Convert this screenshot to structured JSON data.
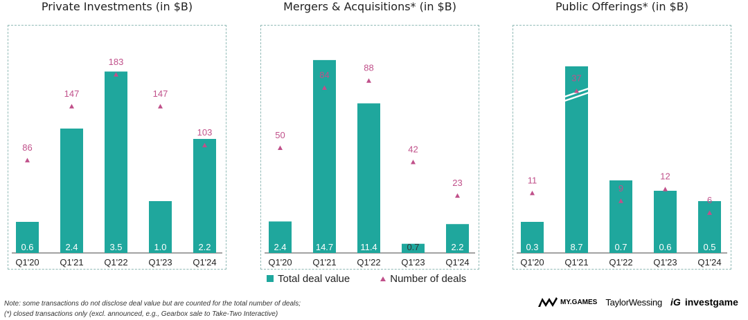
{
  "colors": {
    "bar": "#1fa79d",
    "marker": "#c0508a",
    "border": "#8fb9b5"
  },
  "chart_data": [
    {
      "type": "bar",
      "title": "Private Investments (in $B)",
      "categories": [
        "Q1'20",
        "Q1'21",
        "Q1'22",
        "Q1'23",
        "Q1'24"
      ],
      "series": [
        {
          "name": "Total deal value",
          "values": [
            0.6,
            2.4,
            3.5,
            1.0,
            2.2
          ],
          "labels": [
            "0.6",
            "2.4",
            "3.5",
            "1.0",
            "2.2"
          ]
        },
        {
          "name": "Number of deals",
          "values": [
            86,
            147,
            183,
            147,
            103
          ]
        }
      ],
      "ylim": [
        0,
        4.0
      ],
      "y2lim": [
        0,
        200
      ]
    },
    {
      "type": "bar",
      "title": "Mergers & Acquisitions* (in $B)",
      "categories": [
        "Q1'20",
        "Q1'21",
        "Q1'22",
        "Q1'23",
        "Q1'24"
      ],
      "series": [
        {
          "name": "Total deal value",
          "values": [
            2.4,
            14.7,
            11.4,
            0.7,
            2.2
          ],
          "labels": [
            "2.4",
            "14.7",
            "11.4",
            "0.7",
            "2.2"
          ]
        },
        {
          "name": "Number of deals",
          "values": [
            50,
            84,
            88,
            42,
            23
          ]
        }
      ],
      "ylim": [
        0,
        15.8
      ],
      "y2lim": [
        0,
        100
      ]
    },
    {
      "type": "bar",
      "title": "Public Offerings* (in $B)",
      "categories": [
        "Q1'20",
        "Q1'21",
        "Q1'22",
        "Q1'23",
        "Q1'24"
      ],
      "series": [
        {
          "name": "Total deal value",
          "values": [
            0.3,
            8.7,
            0.7,
            0.6,
            0.5
          ],
          "labels": [
            "0.3",
            "8.7",
            "0.7",
            "0.6",
            "0.5"
          ]
        },
        {
          "name": "Number of deals",
          "values": [
            11,
            37,
            9,
            12,
            6
          ]
        }
      ],
      "ylim": [
        0,
        2.0
      ],
      "y2lim": [
        0,
        45
      ],
      "broken_axis": true,
      "break_category": "Q1'21",
      "break_display_value": 1.8
    }
  ],
  "legend": {
    "bar_label": "Total deal value",
    "marker_label": "Number of deals"
  },
  "notes": [
    "Note: some transactions do not disclose deal value but are counted for the total number of deals;",
    "(*) closed transactions only (excl. announced, e.g., Gearbox sale to Take-Two Interactive)"
  ],
  "logos": {
    "mygames": "MY.GAMES",
    "taylorwessing": "TaylorWessing",
    "investgame_mark": "iG",
    "investgame": "investgame"
  }
}
